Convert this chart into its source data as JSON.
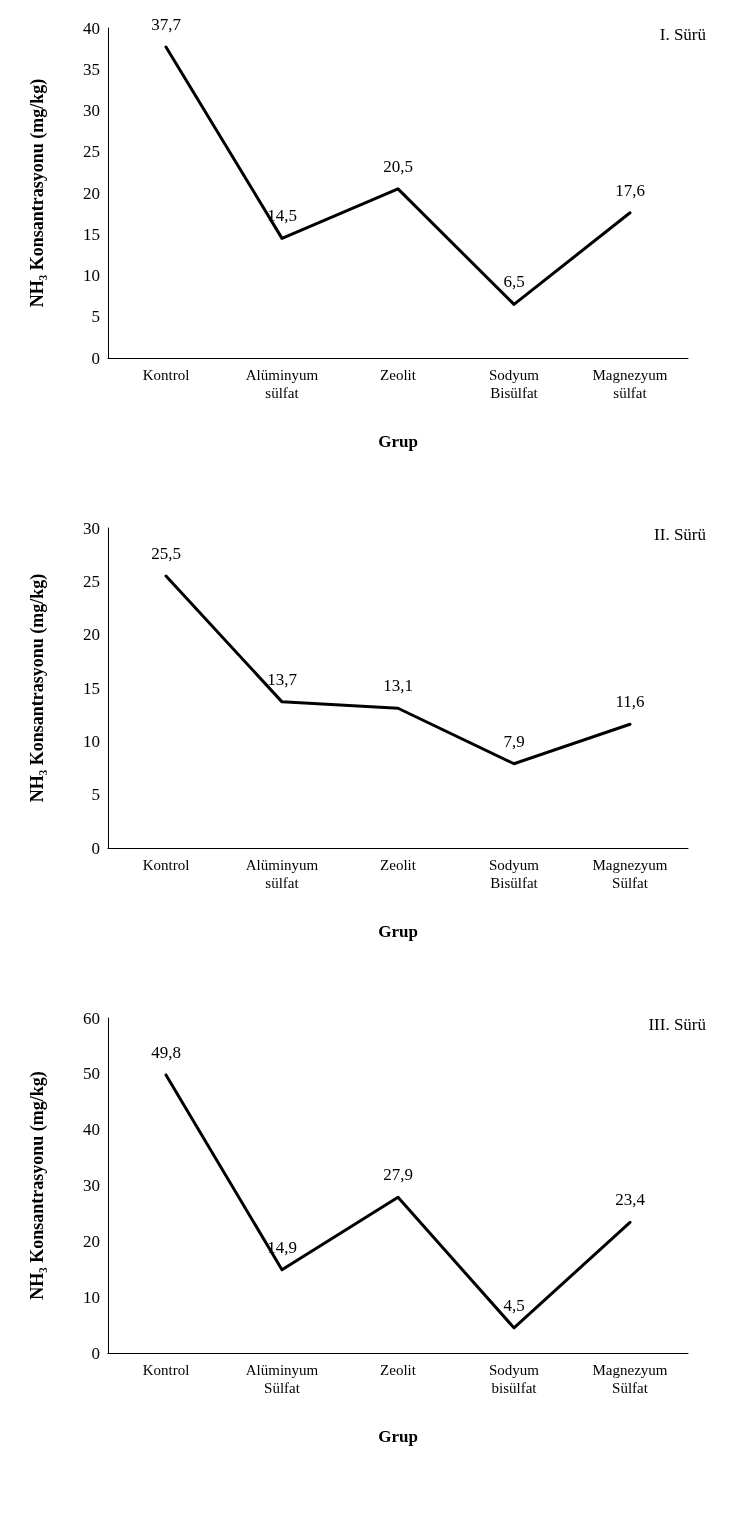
{
  "chart_data": [
    {
      "type": "line",
      "xlabel": "Grup",
      "ylabel": "NH₃ Konsantrasyonu (mg/kg)",
      "annotations": [
        "I. Sürü"
      ],
      "categories": [
        "Kontrol",
        "Alüminyum sülfat",
        "Zeolit",
        "Sodyum Bisülfat",
        "Magnezyum sülfat"
      ],
      "values": [
        37.7,
        14.5,
        20.5,
        6.5,
        17.6
      ],
      "value_labels": [
        "37,7",
        "14,5",
        "20,5",
        "6,5",
        "17,6"
      ],
      "color": "#000000",
      "ylim": [
        0,
        40
      ],
      "yticks": [
        0,
        5,
        10,
        15,
        20,
        25,
        30,
        35,
        40
      ],
      "grid": false,
      "marker": "none",
      "line_style": "solid"
    },
    {
      "type": "line",
      "xlabel": "Grup",
      "ylabel": "NH₃ Konsantrasyonu (mg/kg)",
      "annotations": [
        "II. Sürü"
      ],
      "categories": [
        "Kontrol",
        "Alüminyum sülfat",
        "Zeolit",
        "Sodyum Bisülfat",
        "Magnezyum Sülfat"
      ],
      "values": [
        25.5,
        13.7,
        13.1,
        7.9,
        11.6
      ],
      "value_labels": [
        "25,5",
        "13,7",
        "13,1",
        "7,9",
        "11,6"
      ],
      "color": "#000000",
      "ylim": [
        0,
        30
      ],
      "yticks": [
        0,
        5,
        10,
        15,
        20,
        25,
        30
      ],
      "grid": false,
      "marker": "none",
      "line_style": "solid"
    },
    {
      "type": "line",
      "xlabel": "Grup",
      "ylabel": "NH₃ Konsantrasyonu (mg/kg)",
      "annotations": [
        "III. Sürü"
      ],
      "categories": [
        "Kontrol",
        "Alüminyum Sülfat",
        "Zeolit",
        "Sodyum bisülfat",
        "Magnezyum Sülfat"
      ],
      "values": [
        49.8,
        14.9,
        27.9,
        4.5,
        23.4
      ],
      "value_labels": [
        "49,8",
        "14,9",
        "27,9",
        "4,5",
        "23,4"
      ],
      "color": "#000000",
      "ylim": [
        0,
        60
      ],
      "yticks": [
        0,
        10,
        20,
        30,
        40,
        50,
        60
      ],
      "grid": false,
      "marker": "none",
      "line_style": "solid"
    }
  ]
}
